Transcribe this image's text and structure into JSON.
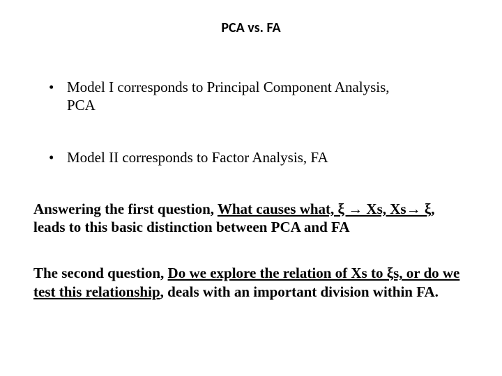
{
  "title": "PCA vs. FA",
  "title_fontsize": 20,
  "title_font": "Calibri",
  "body_font": "Times New Roman",
  "body_fontsize": 21,
  "bg_color": "#ffffff",
  "text_color": "#000000",
  "bullets": [
    {
      "text_a": "Model I corresponds to Principal Component Analysis,",
      "text_b": "PCA"
    },
    {
      "text_a": "Model II corresponds to Factor Analysis, FA",
      "text_b": ""
    }
  ],
  "para1": {
    "lead": "Answering the first question, ",
    "underline": "What causes what, ξ → Xs, Xs→ ξ",
    "tail": ", leads to this basic distinction between PCA and FA"
  },
  "para2": {
    "lead": "The second question, ",
    "underline": "Do we explore the relation of Xs to ξs, or do we test this relationship",
    "tail": ", deals with an important division within FA."
  }
}
